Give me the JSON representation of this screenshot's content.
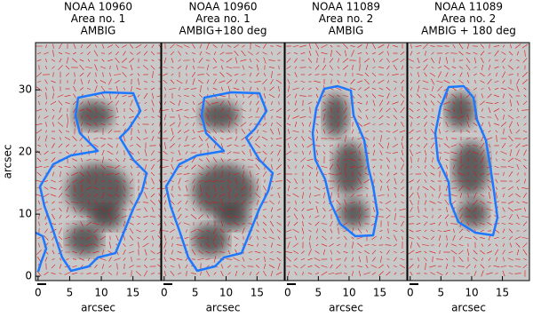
{
  "chart_data": [
    {
      "type": "image",
      "title": [
        "NOAA 10960",
        "Area no. 1",
        "AMBIG"
      ],
      "xlabel": "arcsec",
      "ylabel": "arcsec",
      "xlim": [
        -0.4,
        19.4
      ],
      "xticks": [
        0,
        5,
        10,
        15
      ],
      "ylim": [
        -0.7,
        37.6
      ],
      "yticks": [
        0,
        10,
        20,
        30
      ]
    },
    {
      "type": "image",
      "title": [
        "NOAA 10960",
        "Area no. 1",
        "AMBIG+180 deg"
      ],
      "xlabel": "arcsec",
      "xlim": [
        -0.4,
        19.4
      ],
      "xticks": [
        0,
        5,
        10,
        15
      ],
      "ylim": [
        -0.7,
        37.6
      ]
    },
    {
      "type": "image",
      "title": [
        "NOAA 11089",
        "Area no. 2",
        "AMBIG"
      ],
      "xlabel": "arcsec",
      "xlim": [
        -0.4,
        19.4
      ],
      "xticks": [
        0,
        5,
        10,
        15
      ],
      "ylim": [
        -0.7,
        37.6
      ]
    },
    {
      "type": "image",
      "title": [
        "NOAA 11089",
        "Area no. 2",
        "AMBIG + 180 deg"
      ],
      "xlabel": "arcsec",
      "xlim": [
        -0.4,
        19.4
      ],
      "xticks": [
        0,
        5,
        10,
        15
      ],
      "ylim": [
        -0.7,
        37.6
      ]
    }
  ]
}
